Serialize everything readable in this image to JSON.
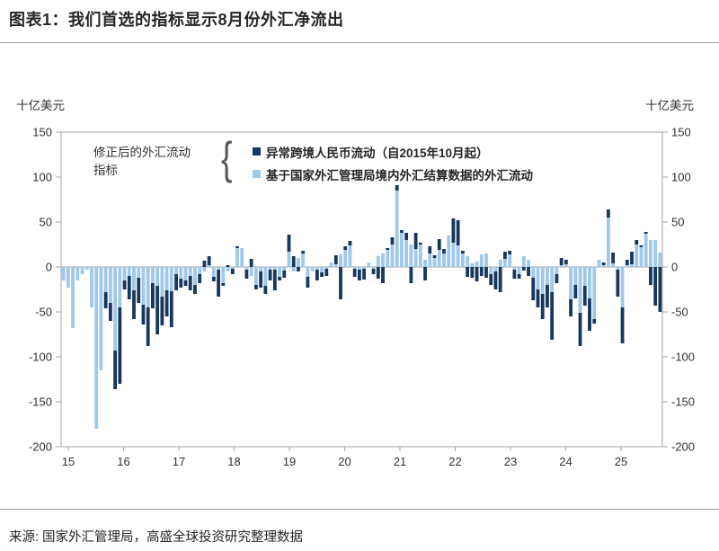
{
  "title": "图表1：我们首选的指标显示8月份外汇净流出",
  "source": "来源: 国家外汇管理局，高盛全球投资研究整理数据",
  "units": {
    "left": "十亿美元",
    "right": "十亿美元"
  },
  "annotation": {
    "line1": "修正后的外汇流动",
    "line2": "指标",
    "brace": "{"
  },
  "legend": [
    {
      "label": "异常跨境人民币流动（自2015年10月起）",
      "color": "#17375d"
    },
    {
      "label": "基于国家外汇管理局境内外汇结算数据的外汇流动",
      "color": "#a0c8ea"
    }
  ],
  "chart_data": {
    "type": "bar",
    "stacked": true,
    "title": "我们首选的指标显示8月份外汇净流出",
    "ylabel": "十亿美元",
    "ylim": [
      -200,
      150
    ],
    "yticks": [
      150,
      100,
      50,
      0,
      -50,
      -100,
      -150,
      -200
    ],
    "xticks": [
      "15",
      "16",
      "17",
      "18",
      "19",
      "20",
      "21",
      "22",
      "23",
      "24",
      "25"
    ],
    "x_start": "2015-01",
    "x_end": "2025-08",
    "x_frequency": "monthly",
    "grid": false,
    "legend_position": "top-inside",
    "series": [
      {
        "name": "基于国家外汇管理局境内外汇结算数据的外汇流动",
        "color": "#a0c8ea",
        "values": [
          -15,
          -23,
          -68,
          -15,
          -8,
          -3,
          -45,
          -180,
          -115,
          -28,
          -40,
          -93,
          -45,
          -15,
          -10,
          -26,
          -12,
          -42,
          -45,
          -18,
          -21,
          -33,
          -26,
          -27,
          -8,
          -13,
          -15,
          -10,
          -20,
          -8,
          -5,
          2,
          -11,
          -3,
          -18,
          -5,
          -2,
          21,
          21,
          -3,
          -10,
          -20,
          -5,
          -21,
          -3,
          -3,
          -11,
          -4,
          17,
          -5,
          10,
          15,
          -11,
          -5,
          -3,
          -6,
          -2,
          5,
          3,
          14,
          19,
          24,
          -2,
          -3,
          -2,
          5,
          -2,
          12,
          15,
          19,
          25,
          85,
          38,
          30,
          25,
          20,
          25,
          8,
          15,
          10,
          19,
          15,
          35,
          27,
          24,
          15,
          12,
          4,
          6,
          14,
          15,
          -8,
          -5,
          8,
          9,
          14,
          -3,
          -8,
          12,
          8,
          -12,
          -25,
          -30,
          -20,
          -28,
          -8,
          2,
          3,
          -36,
          -20,
          -51,
          -21,
          -35,
          -58,
          8,
          2,
          55,
          4,
          -3,
          -45,
          2,
          3,
          25,
          22,
          37,
          30,
          30,
          16
        ]
      },
      {
        "name": "异常跨境人民币流动（自2015年10月起）",
        "color": "#17375d",
        "values": [
          0,
          0,
          0,
          0,
          0,
          0,
          0,
          0,
          0,
          -18,
          -20,
          -43,
          -85,
          -10,
          -26,
          -32,
          -28,
          -22,
          -43,
          -28,
          -54,
          -32,
          -29,
          -40,
          -18,
          -10,
          -6,
          -16,
          -10,
          -10,
          7,
          10,
          -5,
          -30,
          -3,
          2,
          -6,
          2,
          0,
          -10,
          9,
          -5,
          -18,
          -9,
          -12,
          -23,
          -4,
          -8,
          19,
          12,
          -5,
          3,
          -12,
          0,
          -12,
          -5,
          -8,
          0,
          10,
          -36,
          4,
          5,
          -9,
          -12,
          -12,
          0,
          -6,
          -13,
          -18,
          2,
          8,
          6,
          3,
          8,
          -18,
          18,
          2,
          -15,
          8,
          3,
          12,
          5,
          0,
          27,
          28,
          3,
          -11,
          -12,
          -16,
          -10,
          -12,
          -12,
          -20,
          -28,
          8,
          4,
          -10,
          -5,
          -4,
          -10,
          -25,
          -20,
          -28,
          -25,
          -53,
          -10,
          8,
          5,
          -19,
          -15,
          -37,
          -22,
          -36,
          -5,
          0,
          3,
          9,
          12,
          -30,
          -40,
          6,
          14,
          5,
          2,
          2,
          -20,
          -43,
          -50
        ]
      }
    ]
  }
}
